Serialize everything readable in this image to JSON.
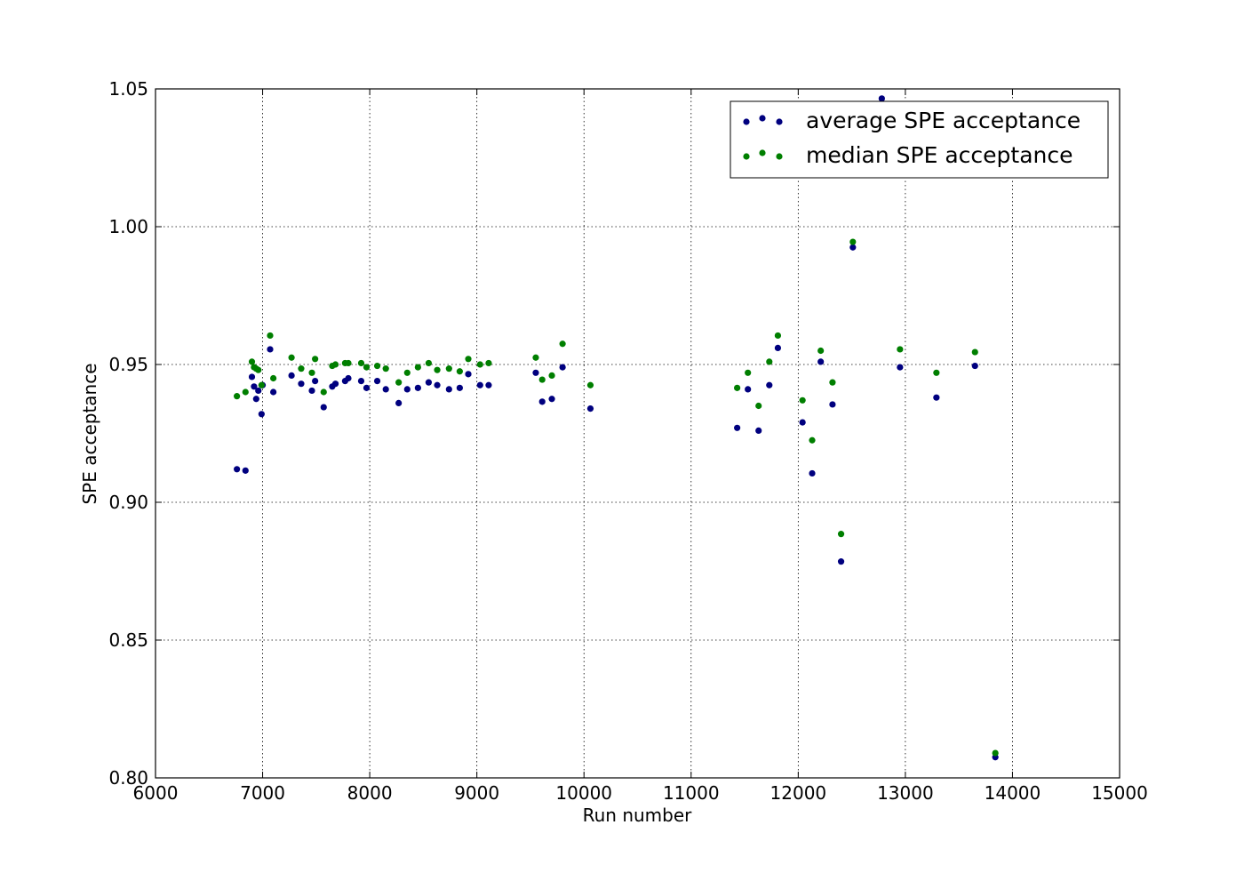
{
  "chart_data": {
    "type": "scatter",
    "title": "",
    "xlabel": "Run number",
    "ylabel": "SPE acceptance",
    "xlim": [
      6000,
      15000
    ],
    "ylim": [
      0.8,
      1.05
    ],
    "x_ticks": [
      "6000",
      "7000",
      "8000",
      "9000",
      "10000",
      "11000",
      "12000",
      "13000",
      "14000",
      "15000"
    ],
    "y_ticks": [
      "0.80",
      "0.85",
      "0.90",
      "0.95",
      "1.00",
      "1.05"
    ],
    "grid": true,
    "legend_position": "top-right",
    "series": [
      {
        "name": "average SPE acceptance",
        "color": "#00007f",
        "points": [
          [
            6760,
            0.912
          ],
          [
            6840,
            0.9115
          ],
          [
            6900,
            0.9455
          ],
          [
            6920,
            0.942
          ],
          [
            6940,
            0.9375
          ],
          [
            6960,
            0.9405
          ],
          [
            6990,
            0.932
          ],
          [
            7000,
            0.9425
          ],
          [
            7070,
            0.9555
          ],
          [
            7100,
            0.94
          ],
          [
            7270,
            0.946
          ],
          [
            7360,
            0.943
          ],
          [
            7460,
            0.9405
          ],
          [
            7490,
            0.944
          ],
          [
            7570,
            0.9345
          ],
          [
            7650,
            0.942
          ],
          [
            7680,
            0.943
          ],
          [
            7770,
            0.944
          ],
          [
            7800,
            0.945
          ],
          [
            7920,
            0.944
          ],
          [
            7970,
            0.9415
          ],
          [
            8070,
            0.944
          ],
          [
            8150,
            0.941
          ],
          [
            8270,
            0.936
          ],
          [
            8350,
            0.941
          ],
          [
            8450,
            0.9415
          ],
          [
            8550,
            0.9435
          ],
          [
            8630,
            0.9425
          ],
          [
            8740,
            0.941
          ],
          [
            8840,
            0.9415
          ],
          [
            8920,
            0.9465
          ],
          [
            9030,
            0.9425
          ],
          [
            9110,
            0.9425
          ],
          [
            9550,
            0.947
          ],
          [
            9610,
            0.9365
          ],
          [
            9700,
            0.9375
          ],
          [
            9800,
            0.949
          ],
          [
            10060,
            0.934
          ],
          [
            11430,
            0.927
          ],
          [
            11530,
            0.941
          ],
          [
            11630,
            0.926
          ],
          [
            11730,
            0.9425
          ],
          [
            11810,
            0.956
          ],
          [
            12040,
            0.929
          ],
          [
            12130,
            0.9105
          ],
          [
            12210,
            0.951
          ],
          [
            12320,
            0.9355
          ],
          [
            12400,
            0.8785
          ],
          [
            12510,
            0.9925
          ],
          [
            12780,
            1.0465
          ],
          [
            12950,
            0.949
          ],
          [
            13290,
            0.938
          ],
          [
            13650,
            0.9495
          ],
          [
            13840,
            0.8075
          ]
        ]
      },
      {
        "name": "median SPE acceptance",
        "color": "#007f00",
        "points": [
          [
            6760,
            0.9385
          ],
          [
            6840,
            0.94
          ],
          [
            6900,
            0.951
          ],
          [
            6920,
            0.949
          ],
          [
            6940,
            0.9485
          ],
          [
            6960,
            0.948
          ],
          [
            6990,
            0.9425
          ],
          [
            7070,
            0.9605
          ],
          [
            7100,
            0.945
          ],
          [
            7270,
            0.9525
          ],
          [
            7360,
            0.9485
          ],
          [
            7460,
            0.947
          ],
          [
            7490,
            0.952
          ],
          [
            7570,
            0.94
          ],
          [
            7650,
            0.9495
          ],
          [
            7680,
            0.95
          ],
          [
            7770,
            0.9505
          ],
          [
            7800,
            0.9505
          ],
          [
            7920,
            0.9505
          ],
          [
            7970,
            0.949
          ],
          [
            8070,
            0.9495
          ],
          [
            8150,
            0.9485
          ],
          [
            8270,
            0.9435
          ],
          [
            8350,
            0.947
          ],
          [
            8450,
            0.949
          ],
          [
            8550,
            0.9505
          ],
          [
            8630,
            0.948
          ],
          [
            8740,
            0.9485
          ],
          [
            8840,
            0.9475
          ],
          [
            8920,
            0.952
          ],
          [
            9030,
            0.95
          ],
          [
            9110,
            0.9505
          ],
          [
            9550,
            0.9525
          ],
          [
            9610,
            0.9445
          ],
          [
            9700,
            0.946
          ],
          [
            9800,
            0.9575
          ],
          [
            10060,
            0.9425
          ],
          [
            11430,
            0.9415
          ],
          [
            11530,
            0.947
          ],
          [
            11630,
            0.935
          ],
          [
            11730,
            0.951
          ],
          [
            11810,
            0.9605
          ],
          [
            12040,
            0.937
          ],
          [
            12130,
            0.9225
          ],
          [
            12210,
            0.955
          ],
          [
            12320,
            0.9435
          ],
          [
            12400,
            0.8885
          ],
          [
            12510,
            0.9945
          ],
          [
            12950,
            0.9555
          ],
          [
            13290,
            0.947
          ],
          [
            13650,
            0.9545
          ],
          [
            13840,
            0.809
          ]
        ]
      }
    ]
  }
}
